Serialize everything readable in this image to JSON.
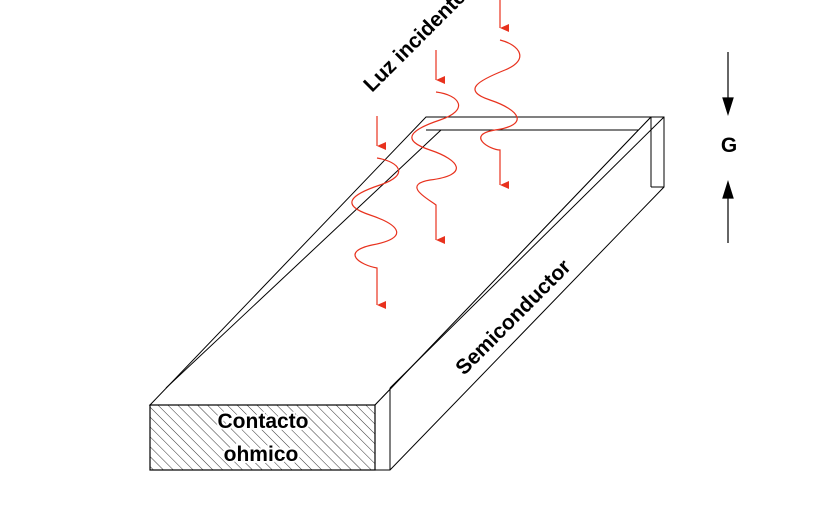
{
  "labels": {
    "light": "Luz incidente",
    "generation": "G",
    "semiconductor": "Semiconductor",
    "contact_line1": "Contacto",
    "contact_line2": "ohmico"
  },
  "colors": {
    "outline": "#000000",
    "light_rays": "#e8321e",
    "background": "#ffffff"
  }
}
